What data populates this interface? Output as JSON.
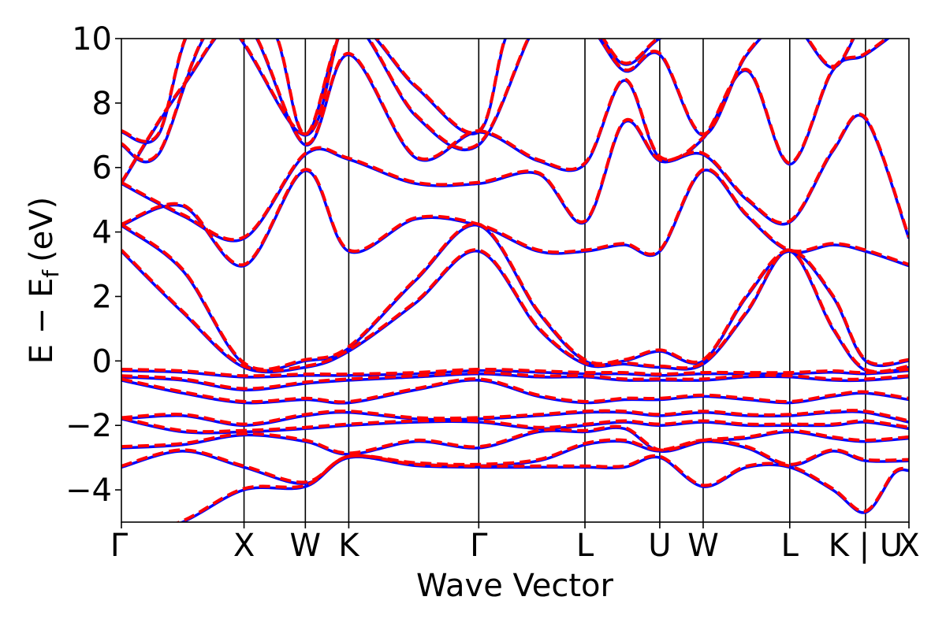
{
  "chart_data": {
    "type": "line",
    "xlabel": "Wave Vector",
    "ylabel_main": "E − E",
    "ylabel_sub": "f",
    "ylabel_unit": "(eV)",
    "ylim": [
      -5,
      10
    ],
    "yticks": [
      {
        "value": -4,
        "label": "−4"
      },
      {
        "value": -2,
        "label": "−2"
      },
      {
        "value": 0,
        "label": "0"
      },
      {
        "value": 2,
        "label": "2"
      },
      {
        "value": 4,
        "label": "4"
      },
      {
        "value": 6,
        "label": "6"
      },
      {
        "value": 8,
        "label": "8"
      },
      {
        "value": 10,
        "label": "10"
      }
    ],
    "kpoints": [
      {
        "x": 0.0,
        "label": "Γ"
      },
      {
        "x": 1.0,
        "label": "X"
      },
      {
        "x": 1.5,
        "label": "W"
      },
      {
        "x": 1.854,
        "label": "K"
      },
      {
        "x": 2.914,
        "label": "Γ"
      },
      {
        "x": 3.78,
        "label": "L"
      },
      {
        "x": 4.39,
        "label": "U"
      },
      {
        "x": 4.744,
        "label": "W"
      },
      {
        "x": 5.45,
        "label": "L"
      },
      {
        "x": 6.068,
        "label": "K | U"
      },
      {
        "x": 6.422,
        "label": "X"
      }
    ],
    "xlim": [
      0,
      6.422
    ],
    "colors": {
      "solid": "#0000ff",
      "dashed": "#ff0000",
      "vline": "#000000"
    },
    "line_styles": {
      "series_a": "solid",
      "series_b": "dashed"
    },
    "bands": [
      [
        [
          0,
          -5.6
        ],
        [
          0.5,
          -5.0
        ],
        [
          1.0,
          -4.0
        ],
        [
          1.5,
          -3.9
        ],
        [
          1.854,
          -3.0
        ],
        [
          2.4,
          -3.25
        ],
        [
          2.914,
          -3.3
        ],
        [
          3.4,
          -3.3
        ],
        [
          3.78,
          -3.3
        ],
        [
          4.1,
          -3.3
        ],
        [
          4.39,
          -3.0
        ],
        [
          4.744,
          -3.9
        ],
        [
          5.1,
          -3.3
        ],
        [
          5.45,
          -3.3
        ],
        [
          5.8,
          -4.0
        ],
        [
          6.068,
          -4.7
        ],
        [
          6.3,
          -3.5
        ],
        [
          6.422,
          -3.4
        ]
      ],
      [
        [
          0,
          -3.3
        ],
        [
          0.5,
          -2.8
        ],
        [
          1.0,
          -3.3
        ],
        [
          1.5,
          -3.8
        ],
        [
          1.854,
          -3.0
        ],
        [
          2.4,
          -3.2
        ],
        [
          2.914,
          -3.25
        ],
        [
          3.4,
          -3.1
        ],
        [
          3.78,
          -2.6
        ],
        [
          4.1,
          -2.5
        ],
        [
          4.39,
          -2.8
        ],
        [
          4.744,
          -2.5
        ],
        [
          5.1,
          -2.7
        ],
        [
          5.45,
          -3.25
        ],
        [
          5.8,
          -2.8
        ],
        [
          6.068,
          -3.1
        ],
        [
          6.422,
          -3.1
        ]
      ],
      [
        [
          0,
          -2.7
        ],
        [
          0.5,
          -2.6
        ],
        [
          1.0,
          -2.3
        ],
        [
          1.5,
          -2.5
        ],
        [
          1.854,
          -2.9
        ],
        [
          2.4,
          -2.5
        ],
        [
          2.914,
          -2.7
        ],
        [
          3.4,
          -2.2
        ],
        [
          3.78,
          -2.2
        ],
        [
          4.1,
          -2.1
        ],
        [
          4.39,
          -2.8
        ],
        [
          4.744,
          -2.5
        ],
        [
          5.1,
          -2.4
        ],
        [
          5.45,
          -2.2
        ],
        [
          5.8,
          -2.4
        ],
        [
          6.068,
          -2.5
        ],
        [
          6.422,
          -2.4
        ]
      ],
      [
        [
          0,
          -1.8
        ],
        [
          0.5,
          -2.2
        ],
        [
          1.0,
          -2.2
        ],
        [
          1.5,
          -2.1
        ],
        [
          1.854,
          -2.0
        ],
        [
          2.4,
          -1.9
        ],
        [
          2.914,
          -1.9
        ],
        [
          3.4,
          -2.1
        ],
        [
          3.78,
          -2.0
        ],
        [
          4.1,
          -1.9
        ],
        [
          4.39,
          -2.0
        ],
        [
          4.744,
          -1.9
        ],
        [
          5.1,
          -2.0
        ],
        [
          5.45,
          -2.0
        ],
        [
          5.8,
          -2.0
        ],
        [
          6.068,
          -1.9
        ],
        [
          6.422,
          -2.1
        ]
      ],
      [
        [
          0,
          -1.8
        ],
        [
          0.5,
          -1.7
        ],
        [
          1.0,
          -2.0
        ],
        [
          1.5,
          -1.7
        ],
        [
          1.854,
          -1.6
        ],
        [
          2.4,
          -1.8
        ],
        [
          2.914,
          -1.8
        ],
        [
          3.4,
          -1.7
        ],
        [
          3.78,
          -1.6
        ],
        [
          4.1,
          -1.6
        ],
        [
          4.39,
          -1.7
        ],
        [
          4.744,
          -1.6
        ],
        [
          5.1,
          -1.7
        ],
        [
          5.45,
          -1.7
        ],
        [
          5.8,
          -1.6
        ],
        [
          6.068,
          -1.6
        ],
        [
          6.422,
          -1.9
        ]
      ],
      [
        [
          0,
          -0.6
        ],
        [
          0.5,
          -1.0
        ],
        [
          1.0,
          -1.3
        ],
        [
          1.5,
          -1.2
        ],
        [
          1.854,
          -1.3
        ],
        [
          2.4,
          -0.9
        ],
        [
          2.914,
          -0.6
        ],
        [
          3.4,
          -1.1
        ],
        [
          3.78,
          -1.3
        ],
        [
          4.1,
          -1.2
        ],
        [
          4.39,
          -1.2
        ],
        [
          4.744,
          -1.1
        ],
        [
          5.1,
          -1.2
        ],
        [
          5.45,
          -1.3
        ],
        [
          5.8,
          -1.1
        ],
        [
          6.068,
          -1.0
        ],
        [
          6.422,
          -1.2
        ]
      ],
      [
        [
          0,
          -0.5
        ],
        [
          0.5,
          -0.6
        ],
        [
          1.0,
          -0.9
        ],
        [
          1.5,
          -0.7
        ],
        [
          1.854,
          -0.6
        ],
        [
          2.4,
          -0.5
        ],
        [
          2.914,
          -0.4
        ],
        [
          3.4,
          -0.5
        ],
        [
          3.78,
          -0.5
        ],
        [
          4.1,
          -0.6
        ],
        [
          4.39,
          -0.6
        ],
        [
          4.744,
          -0.6
        ],
        [
          5.1,
          -0.5
        ],
        [
          5.45,
          -0.5
        ],
        [
          5.8,
          -0.6
        ],
        [
          6.068,
          -0.6
        ],
        [
          6.422,
          -0.5
        ]
      ],
      [
        [
          0,
          -0.3
        ],
        [
          0.5,
          -0.35
        ],
        [
          1.0,
          -0.5
        ],
        [
          1.5,
          -0.45
        ],
        [
          1.854,
          -0.45
        ],
        [
          2.4,
          -0.4
        ],
        [
          2.914,
          -0.3
        ],
        [
          3.4,
          -0.35
        ],
        [
          3.78,
          -0.4
        ],
        [
          4.1,
          -0.4
        ],
        [
          4.39,
          -0.45
        ],
        [
          4.744,
          -0.4
        ],
        [
          5.1,
          -0.4
        ],
        [
          5.45,
          -0.4
        ],
        [
          5.8,
          -0.35
        ],
        [
          6.068,
          -0.4
        ],
        [
          6.422,
          -0.3
        ]
      ],
      [
        [
          0,
          3.4
        ],
        [
          0.5,
          1.5
        ],
        [
          1.0,
          -0.2
        ],
        [
          1.5,
          -0.2
        ],
        [
          1.854,
          0.3
        ],
        [
          2.4,
          1.8
        ],
        [
          2.914,
          3.4
        ],
        [
          3.4,
          1.0
        ],
        [
          3.78,
          -0.1
        ],
        [
          4.1,
          -0.1
        ],
        [
          4.39,
          -0.2
        ],
        [
          4.744,
          -0.1
        ],
        [
          5.1,
          1.5
        ],
        [
          5.45,
          3.4
        ],
        [
          5.8,
          1.0
        ],
        [
          6.068,
          -0.3
        ],
        [
          6.422,
          -0.2
        ]
      ],
      [
        [
          0,
          4.2
        ],
        [
          0.5,
          2.8
        ],
        [
          1.0,
          -0.1
        ],
        [
          1.5,
          0.0
        ],
        [
          1.854,
          0.4
        ],
        [
          2.4,
          2.5
        ],
        [
          2.914,
          4.2
        ],
        [
          3.4,
          1.5
        ],
        [
          3.78,
          0.0
        ],
        [
          4.1,
          0.0
        ],
        [
          4.39,
          0.3
        ],
        [
          4.744,
          0.0
        ],
        [
          5.1,
          2.0
        ],
        [
          5.45,
          3.4
        ],
        [
          5.8,
          2.0
        ],
        [
          6.068,
          0.0
        ],
        [
          6.422,
          0.0
        ]
      ],
      [
        [
          0,
          4.2
        ],
        [
          0.5,
          4.8
        ],
        [
          1.0,
          2.95
        ],
        [
          1.5,
          5.9
        ],
        [
          1.854,
          3.4
        ],
        [
          2.4,
          4.4
        ],
        [
          2.914,
          4.2
        ],
        [
          3.4,
          3.4
        ],
        [
          3.78,
          3.4
        ],
        [
          4.1,
          3.6
        ],
        [
          4.39,
          3.4
        ],
        [
          4.744,
          5.9
        ],
        [
          5.1,
          4.5
        ],
        [
          5.45,
          3.4
        ],
        [
          5.8,
          3.6
        ],
        [
          6.068,
          3.4
        ],
        [
          6.422,
          2.95
        ]
      ],
      [
        [
          0,
          5.5
        ],
        [
          0.5,
          4.5
        ],
        [
          1.0,
          3.8
        ],
        [
          1.5,
          6.4
        ],
        [
          1.854,
          6.25
        ],
        [
          2.4,
          5.5
        ],
        [
          2.914,
          5.5
        ],
        [
          3.4,
          5.8
        ],
        [
          3.78,
          4.3
        ],
        [
          4.1,
          7.4
        ],
        [
          4.39,
          6.2
        ],
        [
          4.744,
          6.4
        ],
        [
          5.1,
          5.0
        ],
        [
          5.45,
          4.3
        ],
        [
          5.8,
          6.5
        ],
        [
          6.068,
          7.5
        ],
        [
          6.422,
          3.8
        ]
      ],
      [
        [
          0,
          5.5
        ],
        [
          0.5,
          8.5
        ],
        [
          1.0,
          10.5
        ],
        [
          1.5,
          6.7
        ],
        [
          1.854,
          9.5
        ],
        [
          2.4,
          6.3
        ],
        [
          2.914,
          7.1
        ],
        [
          3.4,
          6.2
        ],
        [
          3.78,
          6.1
        ],
        [
          4.1,
          8.7
        ],
        [
          4.39,
          6.3
        ],
        [
          4.744,
          6.9
        ],
        [
          5.1,
          9.0
        ],
        [
          5.45,
          6.1
        ],
        [
          5.8,
          9.0
        ],
        [
          6.068,
          9.5
        ],
        [
          6.422,
          10.5
        ]
      ],
      [
        [
          0,
          6.7
        ],
        [
          0.3,
          6.4
        ],
        [
          0.8,
          10.5
        ],
        [
          1.5,
          7.0
        ],
        [
          1.854,
          10.5
        ],
        [
          2.4,
          7.6
        ],
        [
          2.914,
          6.7
        ],
        [
          3.4,
          10.5
        ],
        [
          3.78,
          10.5
        ],
        [
          4.1,
          9.0
        ],
        [
          4.39,
          9.5
        ],
        [
          4.744,
          7.0
        ],
        [
          5.1,
          9.5
        ],
        [
          5.45,
          10.5
        ],
        [
          5.8,
          9.1
        ],
        [
          6.068,
          10.5
        ],
        [
          6.422,
          10.5
        ]
      ],
      [
        [
          0,
          7.1
        ],
        [
          0.3,
          7.0
        ],
        [
          0.6,
          10.5
        ],
        [
          1.2,
          10.5
        ],
        [
          1.5,
          7.0
        ],
        [
          1.854,
          10.5
        ],
        [
          2.4,
          8.5
        ],
        [
          2.914,
          7.1
        ],
        [
          3.2,
          10.5
        ],
        [
          3.78,
          10.5
        ],
        [
          4.1,
          9.2
        ],
        [
          4.39,
          10.0
        ],
        [
          4.744,
          10.5
        ],
        [
          5.45,
          10.5
        ],
        [
          6.422,
          10.5
        ]
      ]
    ]
  }
}
